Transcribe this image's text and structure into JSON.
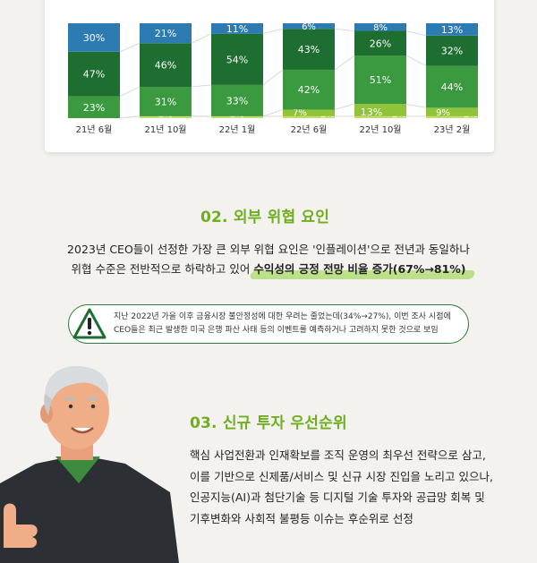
{
  "chart_data": {
    "type": "bar",
    "stacked": true,
    "categories": [
      "21년 6월",
      "21년 10월",
      "22년 1월",
      "22년 6월",
      "22년 10월",
      "23년 2월"
    ],
    "series": [
      {
        "values": [
          0,
          2,
          2,
          2,
          2,
          2
        ],
        "color": "#c7dc6a"
      },
      {
        "values": [
          0,
          0,
          0,
          7,
          13,
          9
        ],
        "color": "#8fc43a"
      },
      {
        "values": [
          23,
          31,
          33,
          42,
          51,
          44
        ],
        "color": "#3b9a3f"
      },
      {
        "values": [
          47,
          46,
          54,
          43,
          26,
          32
        ],
        "color": "#1f6e31"
      },
      {
        "values": [
          30,
          21,
          11,
          6,
          8,
          13
        ],
        "color": "#2d7bb3"
      }
    ],
    "ylim": [
      0,
      100
    ]
  },
  "section2": {
    "title": "02. 외부 위협 요인",
    "line1": "2023년 CEO들이 선정한 가장 큰 외부 위협 요인은 '인플레이션'으로 전년과 동일하나",
    "line2_prefix": "위협 수준은 전반적으로 하락하고 있어 ",
    "line2_highlight": "수익성의 긍정 전망 비율 증가(67%→81%)",
    "notice_line1": "지난 2022년 가을 이후 금융시장 불안정성에 대한 우려는 줄었는데(34%→27%), 이번 조사 시점에",
    "notice_line2": "CEO들은 최근 발생한 미국 은행 파산 사태 등의 이벤트를 예측하거나 고려하지 못한 것으로 보임",
    "warning_icon": "warning-icon"
  },
  "section3": {
    "title": "03. 신규 투자 우선순위",
    "lines": [
      "핵심 사업전환과 인재확보를 조직 운영의 최우선 전략으로 삼고,",
      "이를 기반으로 신제품/서비스 및 신규 시장 진입을 노리고 있으나,",
      "인공지능(AI)과 첨단기술 등 디지털 기술 투자와 공급망 회복 및",
      "기후변화와 사회적 불평등 이슈는 후순위로 선정"
    ]
  }
}
